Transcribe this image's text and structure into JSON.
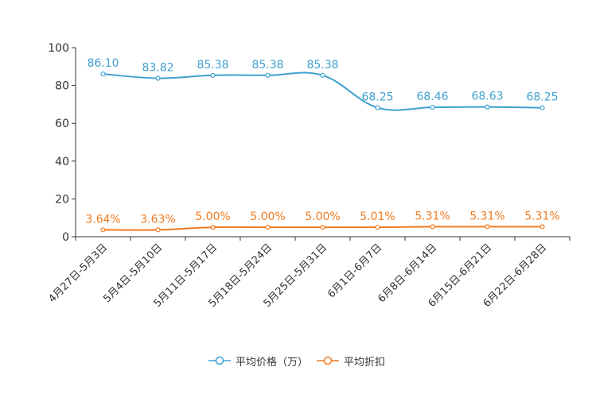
{
  "chart_data": {
    "type": "line",
    "title": "",
    "xlabel": "",
    "ylabel": "",
    "ylim": [
      0,
      100
    ],
    "yticks": [
      0,
      20,
      40,
      60,
      80,
      100
    ],
    "grid": false,
    "legend_position": "bottom-center",
    "categories": [
      "4月27日-5月3日",
      "5月4日-5月10日",
      "5月11日-5月17日",
      "5月18日-5月24日",
      "5月25日-5月31日",
      "6月1日-6月7日",
      "6月8日-6月14日",
      "6月15日-6月21日",
      "6月22日-6月28日"
    ],
    "series": [
      {
        "name": "平均价格（万）",
        "color": "#3fa0d0",
        "values": [
          86.1,
          83.82,
          85.38,
          85.38,
          85.38,
          68.25,
          68.46,
          68.63,
          68.25
        ],
        "labels": [
          "86.10",
          "83.82",
          "85.38",
          "85.38",
          "85.38",
          "68.25",
          "68.46",
          "68.63",
          "68.25"
        ]
      },
      {
        "name": "平均折扣",
        "color": "#f07a1f",
        "values": [
          3.64,
          3.63,
          5.0,
          5.0,
          5.0,
          5.01,
          5.31,
          5.31,
          5.31
        ],
        "labels": [
          "3.64%",
          "3.63%",
          "5.00%",
          "5.00%",
          "5.00%",
          "5.01%",
          "5.31%",
          "5.31%",
          "5.31%"
        ]
      }
    ]
  }
}
